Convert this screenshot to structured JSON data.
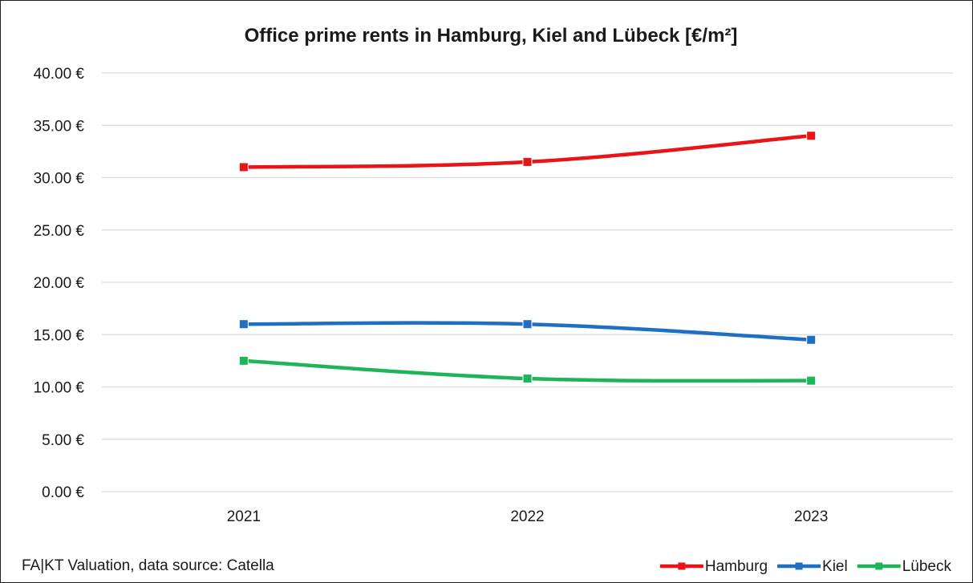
{
  "chart_data": {
    "type": "line",
    "title": "Office prime rents in Hamburg, Kiel and Lübeck [€/m²]",
    "xlabel": "",
    "ylabel": "",
    "categories": [
      "2021",
      "2022",
      "2023"
    ],
    "ylim": [
      0,
      40
    ],
    "yticks": [
      "0.00 €",
      "5.00 €",
      "10.00 €",
      "15.00 €",
      "20.00 €",
      "25.00 €",
      "30.00 €",
      "35.00 €",
      "40.00 €"
    ],
    "ytick_values": [
      0,
      5,
      10,
      15,
      20,
      25,
      30,
      35,
      40
    ],
    "grid": true,
    "legend_position": "bottom-right",
    "series": [
      {
        "name": "Hamburg",
        "color": "#e81416",
        "values": [
          31.0,
          31.5,
          34.0
        ]
      },
      {
        "name": "Kiel",
        "color": "#1f6fc2",
        "values": [
          16.0,
          16.0,
          14.5
        ]
      },
      {
        "name": "Lübeck",
        "color": "#1fb35a",
        "values": [
          12.5,
          10.8,
          10.6
        ]
      }
    ]
  },
  "footer": {
    "source_text": "FA|KT Valuation, data source: Catella"
  }
}
